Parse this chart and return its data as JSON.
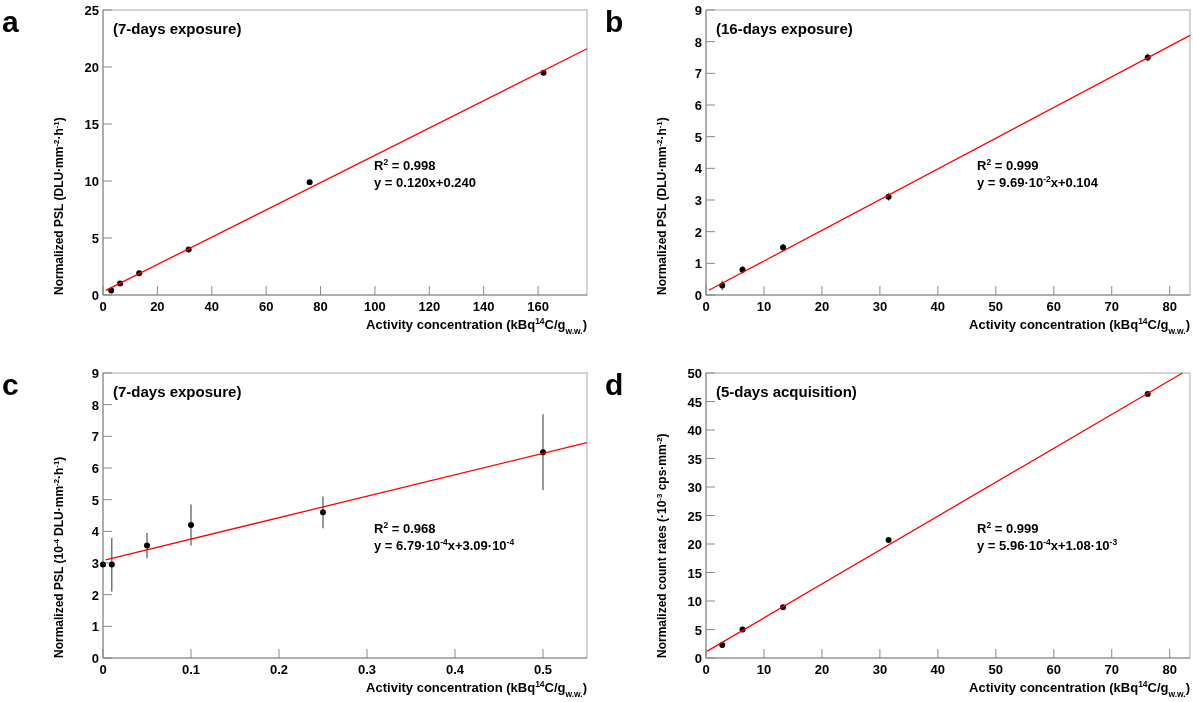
{
  "chart_data": [
    {
      "type": "scatter",
      "title": "(7-days exposure)",
      "xlabel": "Activity concentration (kBq$^{14}$C/g$_{w.w.}$)",
      "ylabel": "Normalized PSL (DLU·mm$^{-2}$·h$^{-1}$)",
      "annotations": [
        "a",
        "R$^{2}$ = 0.998",
        "y = 0.120x+0.240"
      ],
      "xlim": [
        0,
        178
      ],
      "ylim": [
        0,
        25
      ],
      "xticks": [
        0,
        20,
        40,
        60,
        80,
        100,
        120,
        140,
        160
      ],
      "yticks": [
        0,
        5,
        10,
        15,
        20,
        25
      ],
      "grid": false,
      "series": [
        {
          "color": "#000000",
          "marker": "circle",
          "x": [
            3,
            6.3,
            13.3,
            31.5,
            76,
            162
          ],
          "values": [
            0.4,
            1.0,
            1.9,
            4.0,
            9.9,
            19.5
          ]
        },
        {
          "type": "line",
          "color": "#ff0000",
          "marker": "none",
          "x": [
            1,
            178
          ],
          "values": [
            0.4,
            21.6
          ]
        }
      ]
    },
    {
      "type": "scatter",
      "title": "(16-days exposure)",
      "xlabel": "Activity concentration (kBq$^{14}$C/g$_{w.w.}$)",
      "ylabel": "Normalized PSL (DLU·mm$^{-2}$·h$^{-1}$)",
      "annotations": [
        "b",
        "R$^{2}$ = 0.999",
        "y = 9.69·10$^{-2}$x+0.104"
      ],
      "xlim": [
        0,
        83.5
      ],
      "ylim": [
        0,
        9
      ],
      "xticks": [
        0,
        10,
        20,
        30,
        40,
        50,
        60,
        70,
        80
      ],
      "yticks": [
        0,
        1,
        2,
        3,
        4,
        5,
        6,
        7,
        8,
        9
      ],
      "grid": false,
      "series": [
        {
          "color": "#000000",
          "marker": "circle",
          "x": [
            2.8,
            6.3,
            13.3,
            31.5,
            76.2
          ],
          "values": [
            0.3,
            0.8,
            1.5,
            3.1,
            7.5
          ],
          "errors": [
            0.15,
            0.12,
            0.12,
            0.12,
            0.12
          ]
        },
        {
          "type": "line",
          "color": "#ff0000",
          "marker": "none",
          "x": [
            0.5,
            83.5
          ],
          "values": [
            0.15,
            8.2
          ]
        }
      ]
    },
    {
      "type": "scatter",
      "title": "(7-days exposure)",
      "xlabel": "Activity concentration (kBq$^{14}$C/g$_{w.w.}$)",
      "ylabel": "Normalized PSL (10$^{-4}$ DLU·mm$^{-2}$·h$^{-1}$)",
      "annotations": [
        "c",
        "R$^{2}$ = 0.968",
        "y = 6.79·10$^{-4}$x+3.09·10$^{-4}$"
      ],
      "xlim": [
        0,
        0.55
      ],
      "ylim": [
        0,
        9
      ],
      "xticks": [
        0,
        0.1,
        0.2,
        0.3,
        0.4,
        0.5
      ],
      "yticks": [
        0,
        1,
        2,
        3,
        4,
        5,
        6,
        7,
        8,
        9
      ],
      "grid": false,
      "series": [
        {
          "color": "#000000",
          "marker": "circle",
          "x": [
            0,
            0.01,
            0.05,
            0.1,
            0.25,
            0.5
          ],
          "values": [
            2.95,
            2.95,
            3.55,
            4.2,
            4.6,
            6.5
          ],
          "errors": [
            null,
            0.85,
            0.4,
            0.65,
            0.5,
            1.2
          ]
        },
        {
          "type": "line",
          "color": "#ff0000",
          "marker": "none",
          "x": [
            0.003,
            0.55
          ],
          "values": [
            3.1,
            6.8
          ]
        }
      ]
    },
    {
      "type": "scatter",
      "title": "(5-days acquisition)",
      "xlabel": "Activity concentration (kBq$^{14}$C/g$_{w.w.}$)",
      "ylabel": "Normalized count rates (·10$^{-3}$ cps·mm$^{-2}$)",
      "annotations": [
        "d",
        "R$^{2}$ = 0.999",
        "y = 5.96·10$^{-4}$x+1.08·10$^{-3}$"
      ],
      "xlim": [
        0,
        83.5
      ],
      "ylim": [
        0,
        50
      ],
      "xticks": [
        0,
        10,
        20,
        30,
        40,
        50,
        60,
        70,
        80
      ],
      "yticks": [
        0,
        5,
        10,
        15,
        20,
        25,
        30,
        35,
        40,
        45,
        50
      ],
      "grid": false,
      "series": [
        {
          "color": "#000000",
          "marker": "circle",
          "x": [
            2.8,
            6.3,
            13.3,
            31.5,
            76.2
          ],
          "values": [
            2.3,
            5.0,
            8.9,
            20.7,
            46.3
          ]
        },
        {
          "type": "line",
          "color": "#ff0000",
          "marker": "none",
          "x": [
            0.2,
            82.2
          ],
          "values": [
            1.2,
            50
          ]
        }
      ]
    }
  ]
}
